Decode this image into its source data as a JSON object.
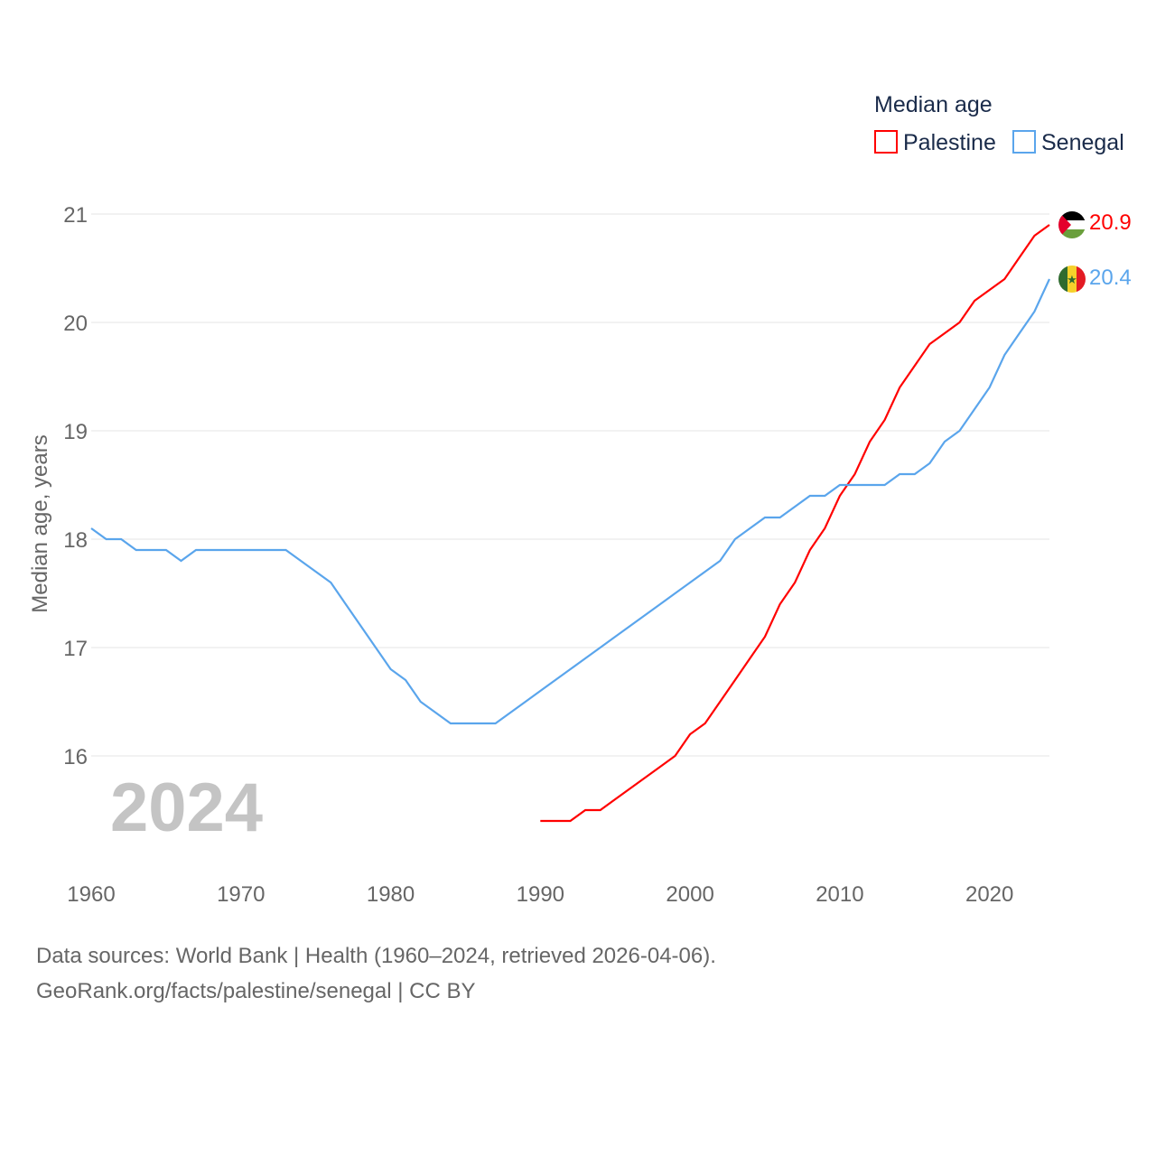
{
  "chart_data": {
    "type": "line",
    "title": "Median age",
    "ylabel": "Median age, years",
    "xlabel": "",
    "xlim": [
      1960,
      2024
    ],
    "ylim": [
      15,
      21.1
    ],
    "yticks": [
      16,
      17,
      18,
      19,
      20,
      21
    ],
    "xticks": [
      1960,
      1970,
      1980,
      1990,
      2000,
      2010,
      2020
    ],
    "grid": true,
    "legend_placement": "top-right",
    "year_label": "2024",
    "series": [
      {
        "name": "Palestine",
        "color": "#ff0000",
        "end_label": "20.9",
        "x_start": 1990,
        "values": [
          15.4,
          15.4,
          15.4,
          15.5,
          15.5,
          15.6,
          15.7,
          15.8,
          15.9,
          16.0,
          16.2,
          16.3,
          16.5,
          16.7,
          16.9,
          17.1,
          17.4,
          17.6,
          17.9,
          18.1,
          18.4,
          18.6,
          18.9,
          19.1,
          19.4,
          19.6,
          19.8,
          19.9,
          20.0,
          20.2,
          20.3,
          20.4,
          20.6,
          20.8,
          20.9
        ]
      },
      {
        "name": "Senegal",
        "color": "#5aa5ec",
        "end_label": "20.4",
        "x_start": 1960,
        "values": [
          18.1,
          18.0,
          18.0,
          17.9,
          17.9,
          17.9,
          17.8,
          17.9,
          17.9,
          17.9,
          17.9,
          17.9,
          17.9,
          17.9,
          17.8,
          17.7,
          17.6,
          17.4,
          17.2,
          17.0,
          16.8,
          16.7,
          16.5,
          16.4,
          16.3,
          16.3,
          16.3,
          16.3,
          16.4,
          16.5,
          16.6,
          16.7,
          16.8,
          16.9,
          17.0,
          17.1,
          17.2,
          17.3,
          17.4,
          17.5,
          17.6,
          17.7,
          17.8,
          18.0,
          18.1,
          18.2,
          18.2,
          18.3,
          18.4,
          18.4,
          18.5,
          18.5,
          18.5,
          18.5,
          18.6,
          18.6,
          18.7,
          18.9,
          19.0,
          19.2,
          19.4,
          19.7,
          19.9,
          20.1,
          20.4
        ]
      }
    ]
  },
  "footer": {
    "sources": "Data sources: World Bank | Health (1960–2024, retrieved 2026-04-06).",
    "credit": "GeoRank.org/facts/palestine/senegal | CC BY"
  }
}
